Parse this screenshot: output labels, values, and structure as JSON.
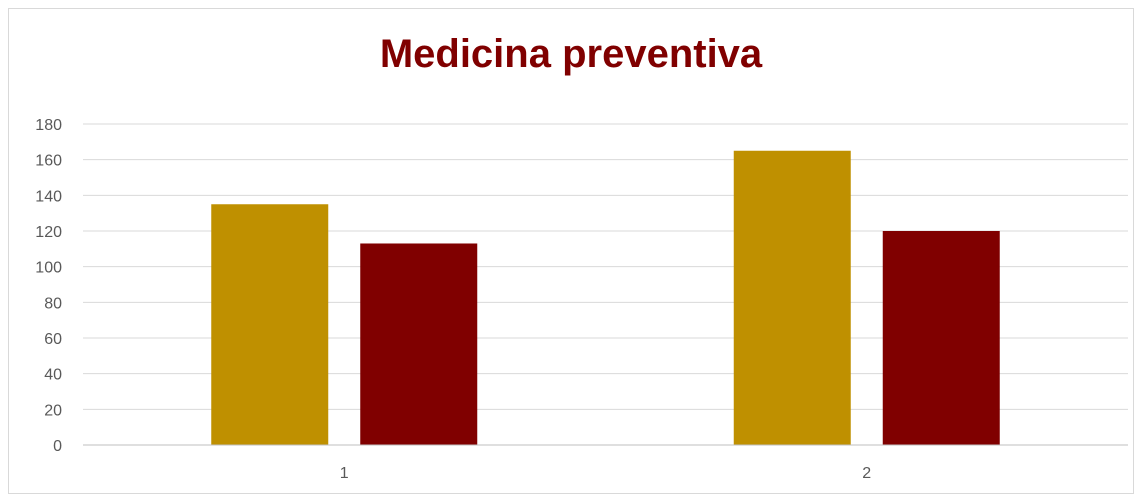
{
  "chart_data": {
    "type": "bar",
    "title": "Medicina preventiva",
    "xlabel": "",
    "ylabel": "",
    "categories": [
      "1",
      "2"
    ],
    "series": [
      {
        "values": [
          135,
          165
        ],
        "color": "#BF9000"
      },
      {
        "values": [
          113,
          120
        ],
        "color": "#800000"
      }
    ],
    "ylim": [
      0,
      180
    ],
    "y_ticks": [
      "0",
      "20",
      "40",
      "60",
      "80",
      "100",
      "120",
      "140",
      "160",
      "180"
    ],
    "grid": true,
    "legend": "none"
  },
  "colors": {
    "title": "#800000",
    "series_1": "#BF9000",
    "series_2": "#800000"
  }
}
